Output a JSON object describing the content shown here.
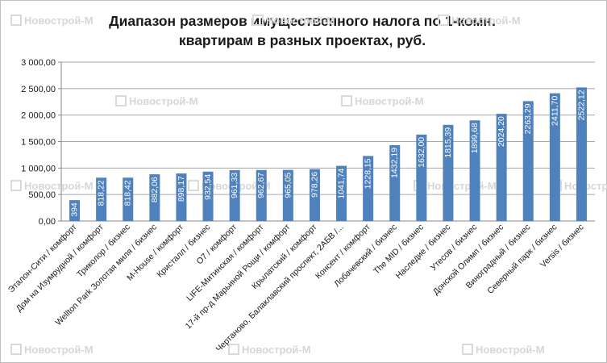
{
  "chart_data": {
    "type": "bar",
    "title_lines": [
      "Диапазон размеров имущественного налога по 1-комн.",
      "квартирам в разных проектах, руб."
    ],
    "xlabel": "",
    "ylabel": "",
    "ylim": [
      0,
      3000
    ],
    "yticks": [
      0,
      500,
      1000,
      1500,
      2000,
      2500,
      3000
    ],
    "ytick_labels": [
      "0,00",
      "500,00",
      "1 000,00",
      "1 500,00",
      "2 000,00",
      "2 500,00",
      "3 000,00"
    ],
    "grid": true,
    "bar_color": "#4f81bd",
    "categories": [
      "Эталон-Сити / комфорт",
      "Дом на Изумрудной / комфорт",
      "Триколор / бизнес",
      "Wellton Park Золотая миля / бизнес",
      "M-House / комфорт",
      "Кристалл / бизнес",
      "О7 / комфорт",
      "LIFE-Митинская / комфорт",
      "17-й пр-д Марьиной Рощи / комфорт",
      "Крылатский / комфорт",
      "Чертаново, Балаклавский проспект, 2АБВ /...",
      "Консент / комфорт",
      "Лобачевский / бизнес",
      "The MID / бизнес",
      "Наследие / бизнес",
      "Утесов / бизнес",
      "Донской Олимп / бизнес",
      "Виноградный / бизнес",
      "Северный парк / бизнес",
      "Versis / бизнес"
    ],
    "values": [
      394,
      818.22,
      818.42,
      882.06,
      898.17,
      932.54,
      961.33,
      962.67,
      965.05,
      978.26,
      1041.74,
      1228.15,
      1432.19,
      1632.0,
      1815.39,
      1899.68,
      2024.2,
      2263.29,
      2411.7,
      2522.12
    ],
    "value_labels": [
      "394",
      "818,22",
      "818,42",
      "882,06",
      "898,17",
      "932,54",
      "961,33",
      "962,67",
      "965,05",
      "978,26",
      "1041,74",
      "1228,15",
      "1432,19",
      "1632,00",
      "1815,39",
      "1899,68",
      "2024,20",
      "2263,29",
      "2411,70",
      "2522,12"
    ]
  },
  "watermark": "Новострой-М"
}
